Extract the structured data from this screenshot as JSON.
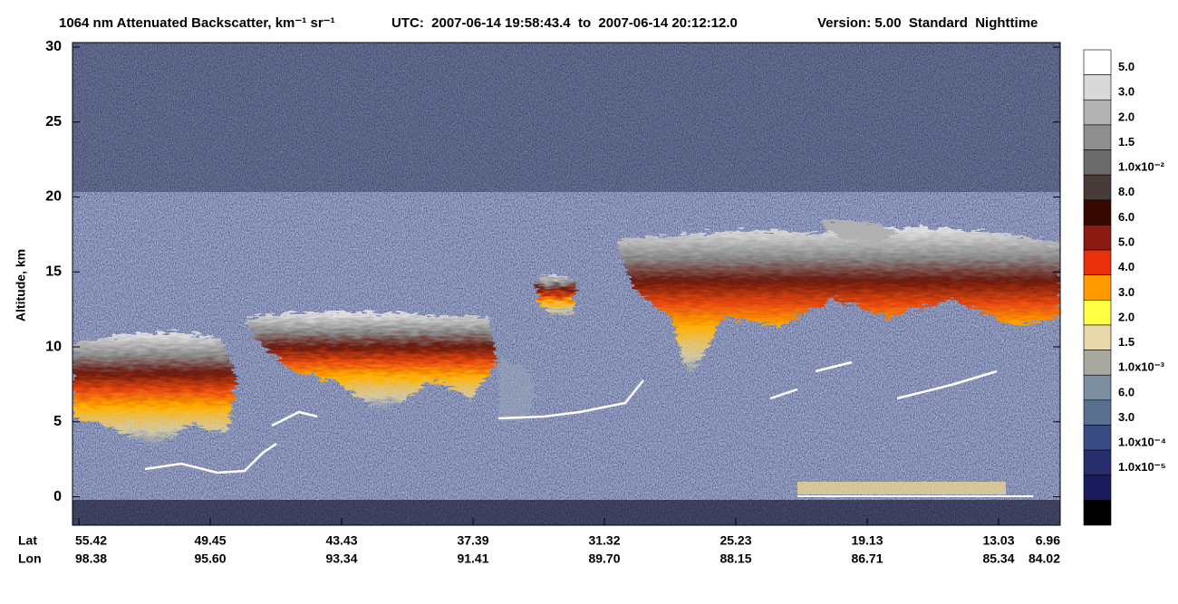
{
  "chart_data": {
    "type": "curtain",
    "title": "1064 nm Attenuated Backscatter, km⁻¹ sr⁻¹",
    "time_range": "UTC:  2007-06-14 19:58:43.4  to  2007-06-14 20:12:12.0",
    "version": "Version: 5.00  Standard  Nighttime",
    "ylabel": "Altitude, km",
    "ylim": [
      -1.9,
      30
    ],
    "yticks": [
      0,
      5,
      10,
      15,
      20,
      25,
      30
    ],
    "lat_label": "Lat",
    "lon_label": "Lon",
    "lat": [
      "55.42",
      "49.45",
      "43.43",
      "37.39",
      "31.32",
      "25.23",
      "19.13",
      "13.03",
      "6.96"
    ],
    "lon": [
      "98.38",
      "95.60",
      "93.34",
      "91.41",
      "89.70",
      "88.15",
      "86.71",
      "85.34",
      "84.02"
    ],
    "colorbar": {
      "colors": [
        "#ffffff",
        "#d9d9d9",
        "#b3b3b3",
        "#8f8f8f",
        "#6b6b6b",
        "#473c38",
        "#360800",
        "#8c1a12",
        "#e8300c",
        "#ff9a00",
        "#ffff44",
        "#e8d8aa",
        "#a8aaa0",
        "#7b8fa0",
        "#5a7090",
        "#3a4a82",
        "#262e6e",
        "#1a1a5c",
        "#000000"
      ],
      "labels": [
        "5.0",
        "3.0",
        "2.0",
        "1.5",
        "1.0x10⁻²",
        "8.0",
        "6.0",
        "5.0",
        "4.0",
        "3.0",
        "2.0",
        "1.5",
        "1.0x10⁻³",
        "6.0",
        "3.0",
        "1.0x10⁻⁴",
        "1.0x10⁻⁵"
      ]
    }
  }
}
